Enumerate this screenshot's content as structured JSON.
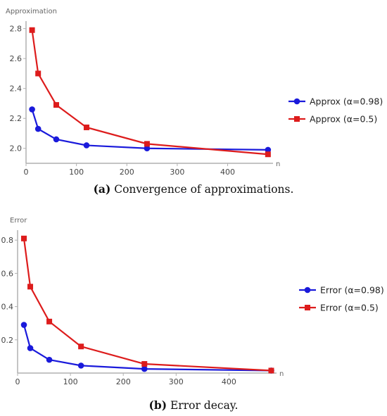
{
  "chart_data": [
    {
      "type": "line",
      "title": "",
      "xlabel": "n",
      "ylabel": "Approximation",
      "xlim": [
        0,
        490
      ],
      "ylim": [
        1.9,
        2.85
      ],
      "xticks": [
        0,
        100,
        200,
        300,
        400
      ],
      "yticks": [
        2.0,
        2.2,
        2.4,
        2.6,
        2.8
      ],
      "ytick_labels": [
        "2.0",
        "2.2",
        "2.4",
        "2.6",
        "2.8"
      ],
      "grid": false,
      "legend": "right",
      "caption_tag": "(a)",
      "caption_text": "Convergence of approximations.",
      "series": [
        {
          "name": "Approx (α=0.98)",
          "color": "#1a1adb",
          "marker": "circle",
          "x": [
            12,
            24,
            60,
            120,
            240,
            480
          ],
          "y": [
            2.26,
            2.13,
            2.06,
            2.02,
            2.0,
            1.99
          ]
        },
        {
          "name": "Approx (α=0.5)",
          "color": "#dd1c1c",
          "marker": "square",
          "x": [
            12,
            24,
            60,
            120,
            240,
            480
          ],
          "y": [
            2.79,
            2.5,
            2.29,
            2.14,
            2.03,
            1.96
          ]
        }
      ]
    },
    {
      "type": "line",
      "title": "",
      "xlabel": "n",
      "ylabel": "Error",
      "xlim": [
        0,
        490
      ],
      "ylim": [
        0,
        0.86
      ],
      "xticks": [
        0,
        100,
        200,
        300,
        400
      ],
      "yticks": [
        0.2,
        0.4,
        0.6,
        0.8
      ],
      "ytick_labels": [
        "0.2",
        "0.4",
        "0.6",
        "0.8"
      ],
      "grid": false,
      "legend": "right",
      "caption_tag": "(b)",
      "caption_text": "Error decay.",
      "series": [
        {
          "name": "Error (α=0.98)",
          "color": "#1a1adb",
          "marker": "circle",
          "x": [
            12,
            24,
            60,
            120,
            240,
            480
          ],
          "y": [
            0.29,
            0.15,
            0.08,
            0.045,
            0.025,
            0.015
          ]
        },
        {
          "name": "Error (α=0.5)",
          "color": "#dd1c1c",
          "marker": "square",
          "x": [
            12,
            24,
            60,
            120,
            240,
            480
          ],
          "y": [
            0.81,
            0.52,
            0.31,
            0.16,
            0.055,
            0.015
          ]
        }
      ]
    }
  ]
}
